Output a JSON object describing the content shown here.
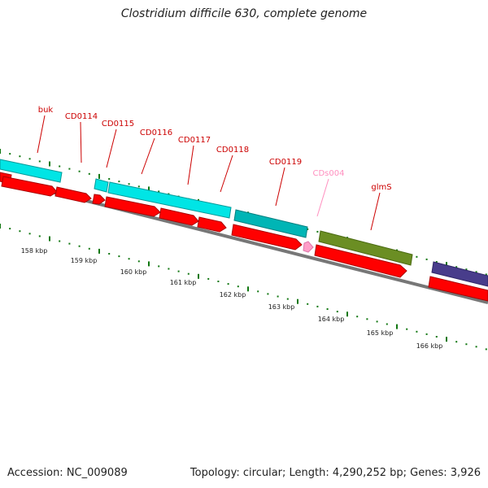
{
  "title": "Clostridium difficile 630, complete genome",
  "footer": {
    "accession": "Accession: NC_009089",
    "summary": "Topology: circular; Length: 4,290,252 bp; Genes: 3,926"
  },
  "colors": {
    "cds": "#ff0000",
    "gene_cyan": "#00e5e5",
    "gene_teal": "#00b5b5",
    "gene_olive": "#6b8e23",
    "gene_purple": "#483d8b",
    "ncrna": "#ff9ec8",
    "label_red": "#cc0000",
    "label_pink": "#ff8fbf",
    "tick": "#117711",
    "backbone": "#777777"
  },
  "gene_labels": [
    {
      "name": "buk",
      "kind": "cds"
    },
    {
      "name": "CD0114",
      "kind": "cds"
    },
    {
      "name": "CD0115",
      "kind": "cds"
    },
    {
      "name": "CD0116",
      "kind": "cds"
    },
    {
      "name": "CD0117",
      "kind": "cds"
    },
    {
      "name": "CD0118",
      "kind": "cds"
    },
    {
      "name": "CD0119",
      "kind": "cds"
    },
    {
      "name": "CDs004",
      "kind": "ncrna"
    },
    {
      "name": "glmS",
      "kind": "cds"
    }
  ],
  "scale_labels": [
    "158 kbp",
    "159 kbp",
    "160 kbp",
    "161 kbp",
    "162 kbp",
    "163 kbp",
    "164 kbp",
    "165 kbp",
    "166 kbp"
  ]
}
